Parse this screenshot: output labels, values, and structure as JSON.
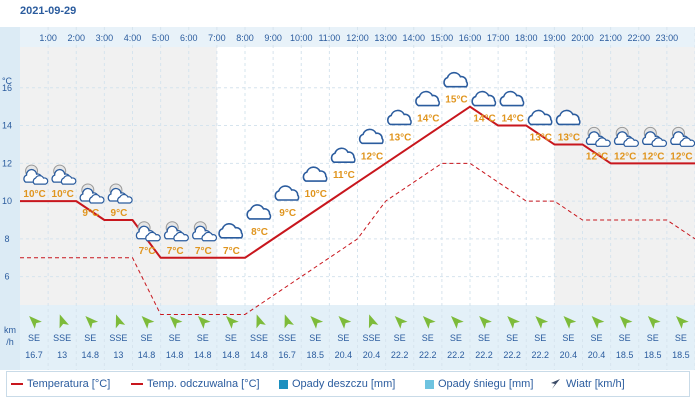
{
  "date": "2021-09-29",
  "chart_data": {
    "type": "line",
    "hours": [
      "1:00",
      "2:00",
      "3:00",
      "4:00",
      "5:00",
      "6:00",
      "7:00",
      "8:00",
      "9:00",
      "10:00",
      "11:00",
      "12:00",
      "13:00",
      "14:00",
      "15:00",
      "16:00",
      "17:00",
      "18:00",
      "19:00",
      "20:00",
      "21:00",
      "22:00",
      "23:00"
    ],
    "ylabel": "°C",
    "yticks": [
      6,
      8,
      10,
      12,
      14,
      16
    ],
    "ylim": [
      4.5,
      18
    ],
    "series": [
      {
        "name": "Temperatura [°C]",
        "color": "#c8161d",
        "style": "solid",
        "x": [
          0,
          1,
          2,
          3,
          4,
          5,
          6,
          7,
          8,
          9,
          10,
          11,
          12,
          13,
          14,
          15,
          16,
          17,
          18,
          19,
          20,
          21,
          22,
          23,
          24
        ],
        "values": [
          10,
          10,
          10,
          9,
          9,
          7,
          7,
          7,
          7,
          8,
          9,
          10,
          11,
          12,
          13,
          14,
          15,
          14,
          14,
          13,
          13,
          12,
          12,
          12,
          12
        ]
      },
      {
        "name": "Temp. odczuwalna [°C]",
        "color": "#c8161d",
        "style": "dashed",
        "x": [
          0,
          1,
          2,
          3,
          4,
          5,
          6,
          7,
          8,
          9,
          10,
          11,
          12,
          13,
          14,
          15,
          16,
          17,
          18,
          19,
          20,
          21,
          22,
          23,
          24
        ],
        "values": [
          7,
          7,
          7,
          7,
          7,
          4,
          4,
          4,
          4,
          5,
          6,
          7,
          8,
          10,
          11,
          12,
          12,
          11,
          10,
          10,
          9,
          9,
          9,
          9,
          8
        ]
      }
    ],
    "temp_labels": [
      {
        "h": 1,
        "text": "10°C",
        "v": 10,
        "icon": "night-cloudy"
      },
      {
        "h": 2,
        "text": "10°C",
        "v": 10,
        "icon": "night-cloudy"
      },
      {
        "h": 3,
        "text": "9°C",
        "v": 9,
        "icon": "night-cloudy"
      },
      {
        "h": 4,
        "text": "9°C",
        "v": 9,
        "icon": "night-cloudy"
      },
      {
        "h": 5,
        "text": "7°C",
        "v": 7,
        "icon": "night-cloudy"
      },
      {
        "h": 6,
        "text": "7°C",
        "v": 7,
        "icon": "night-cloudy"
      },
      {
        "h": 7,
        "text": "7°C",
        "v": 7,
        "icon": "night-cloudy"
      },
      {
        "h": 8,
        "text": "7°C",
        "v": 7,
        "icon": "cloudy"
      },
      {
        "h": 9,
        "text": "8°C",
        "v": 8,
        "icon": "cloudy"
      },
      {
        "h": 10,
        "text": "9°C",
        "v": 9,
        "icon": "cloudy"
      },
      {
        "h": 11,
        "text": "10°C",
        "v": 10,
        "icon": "cloudy"
      },
      {
        "h": 12,
        "text": "11°C",
        "v": 11,
        "icon": "cloudy"
      },
      {
        "h": 13,
        "text": "12°C",
        "v": 12,
        "icon": "cloudy"
      },
      {
        "h": 14,
        "text": "13°C",
        "v": 13,
        "icon": "cloudy"
      },
      {
        "h": 15,
        "text": "14°C",
        "v": 14,
        "icon": "cloudy"
      },
      {
        "h": 16,
        "text": "15°C",
        "v": 15,
        "icon": "cloudy"
      },
      {
        "h": 17,
        "text": "14°C",
        "v": 14,
        "icon": "cloudy"
      },
      {
        "h": 18,
        "text": "14°C",
        "v": 14,
        "icon": "cloudy"
      },
      {
        "h": 19,
        "text": "13°C",
        "v": 13,
        "icon": "cloudy"
      },
      {
        "h": 20,
        "text": "13°C",
        "v": 13,
        "icon": "cloudy"
      },
      {
        "h": 21,
        "text": "12°C",
        "v": 12,
        "icon": "night-cloudy"
      },
      {
        "h": 22,
        "text": "12°C",
        "v": 12,
        "icon": "night-cloudy"
      },
      {
        "h": 23,
        "text": "12°C",
        "v": 12,
        "icon": "night-cloudy"
      },
      {
        "h": 24,
        "text": "12°C",
        "v": 12,
        "icon": "night-cloudy"
      }
    ],
    "wind_unit_line1": "km",
    "wind_unit_line2": "/h",
    "wind": [
      {
        "dir": "SE",
        "speed": "16.7"
      },
      {
        "dir": "SSE",
        "speed": "13"
      },
      {
        "dir": "SE",
        "speed": "14.8"
      },
      {
        "dir": "SSE",
        "speed": "13"
      },
      {
        "dir": "SE",
        "speed": "14.8"
      },
      {
        "dir": "SE",
        "speed": "14.8"
      },
      {
        "dir": "SE",
        "speed": "14.8"
      },
      {
        "dir": "SE",
        "speed": "14.8"
      },
      {
        "dir": "SSE",
        "speed": "14.8"
      },
      {
        "dir": "SSE",
        "speed": "16.7"
      },
      {
        "dir": "SE",
        "speed": "18.5"
      },
      {
        "dir": "SE",
        "speed": "20.4"
      },
      {
        "dir": "SSE",
        "speed": "20.4"
      },
      {
        "dir": "SE",
        "speed": "22.2"
      },
      {
        "dir": "SE",
        "speed": "22.2"
      },
      {
        "dir": "SE",
        "speed": "22.2"
      },
      {
        "dir": "SE",
        "speed": "22.2"
      },
      {
        "dir": "SE",
        "speed": "22.2"
      },
      {
        "dir": "SE",
        "speed": "22.2"
      },
      {
        "dir": "SE",
        "speed": "20.4"
      },
      {
        "dir": "SE",
        "speed": "20.4"
      },
      {
        "dir": "SE",
        "speed": "18.5"
      },
      {
        "dir": "SE",
        "speed": "18.5"
      },
      {
        "dir": "SE",
        "speed": "18.5"
      }
    ],
    "night_shade_hours": [
      [
        0,
        7
      ],
      [
        19,
        24
      ]
    ],
    "grid": true
  },
  "legend": {
    "temp": "Temperatura [°C]",
    "feels": "Temp. odczuwalna [°C]",
    "rain": "Opady deszczu [mm]",
    "snow": "Opady śniegu [mm]",
    "wind": "Wiatr [km/h]",
    "colors": {
      "temp": "#c8161d",
      "rain": "#1b8fbf",
      "snow": "#6ec3e0",
      "wind": "#3a4a66"
    }
  }
}
